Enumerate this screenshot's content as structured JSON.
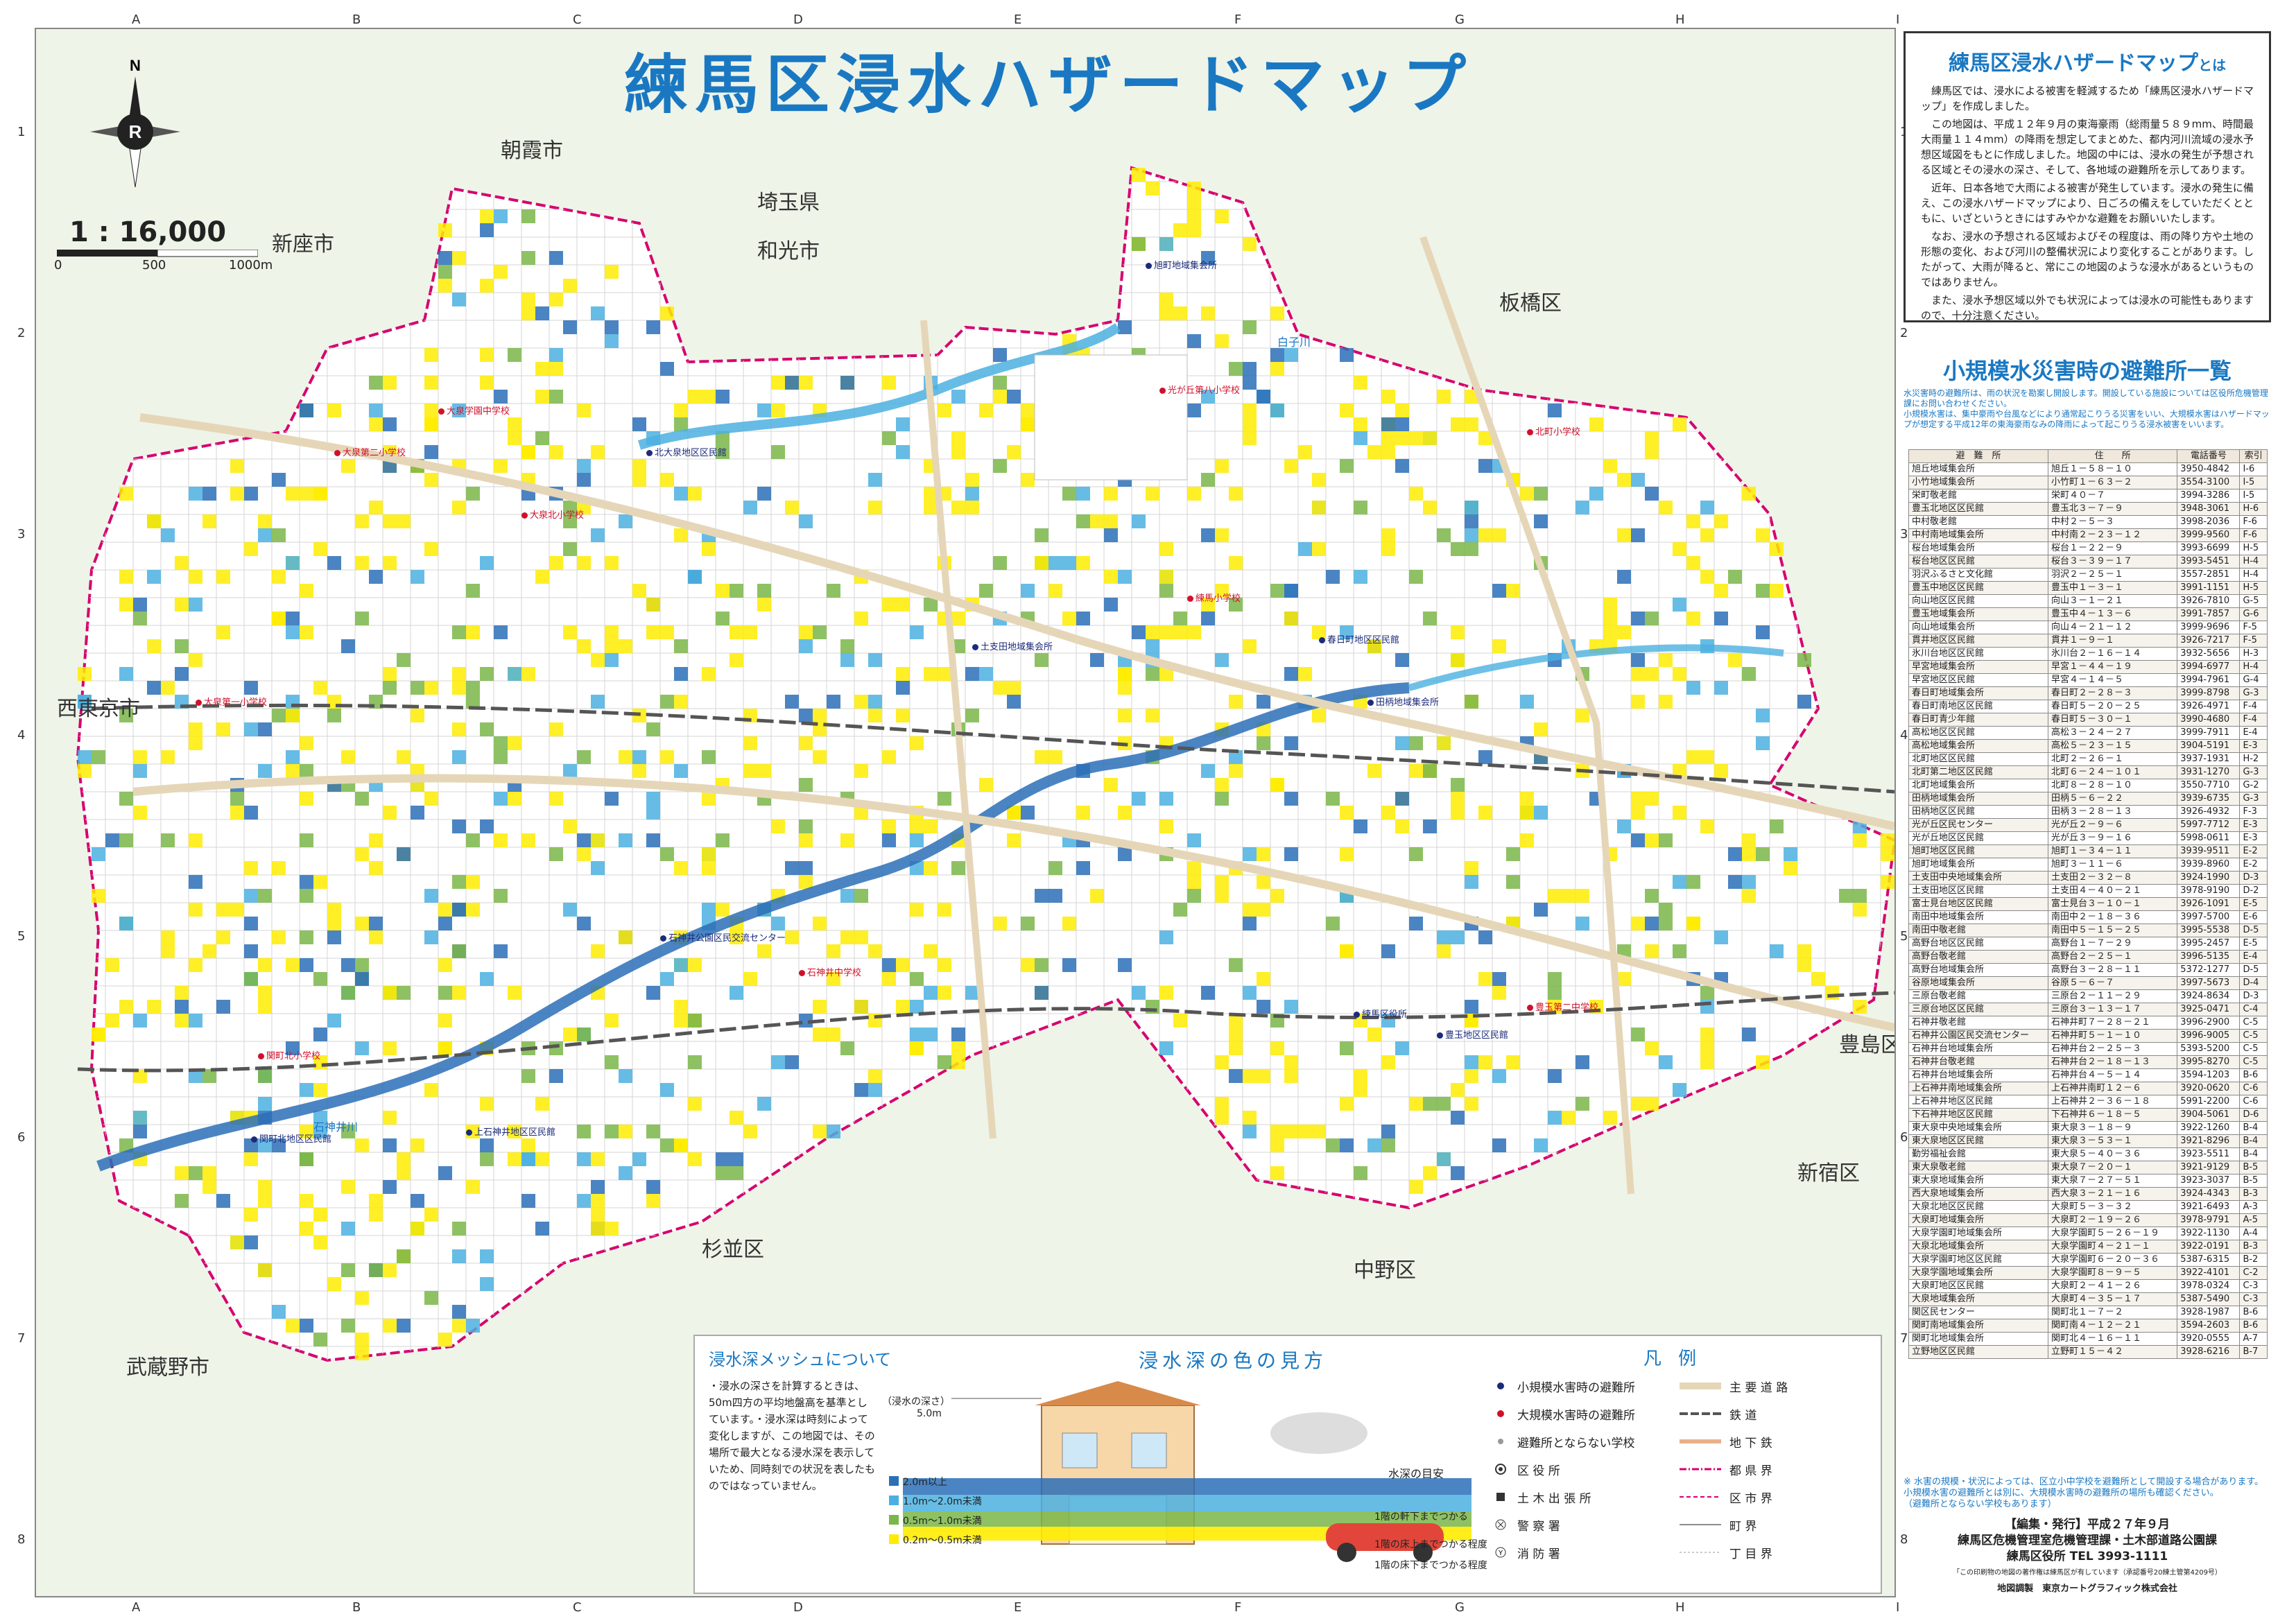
{
  "title": "練馬区浸水ハザードマップ",
  "scale": {
    "ratio": "1 : 16,000",
    "ticks": [
      "0",
      "500",
      "1000m"
    ]
  },
  "compass": {
    "north": "N"
  },
  "grid": {
    "letters": [
      "A",
      "B",
      "C",
      "D",
      "E",
      "F",
      "G",
      "H",
      "I"
    ],
    "numbers": [
      "1",
      "2",
      "3",
      "4",
      "5",
      "6",
      "7",
      "8"
    ],
    "inset_letters": [
      "D",
      "E",
      "F",
      "G",
      "H",
      "I"
    ]
  },
  "places": {
    "asaka": "朝霞市",
    "saitama": "埼玉県",
    "wako": "和光市",
    "niiza": "新座市",
    "itabashi": "板橋区",
    "nishitokyo": "西東京市",
    "toshima": "豊島区",
    "shinjuku": "新宿区",
    "suginami": "杉並区",
    "nakano": "中野区",
    "musashino": "武蔵野市"
  },
  "rivers": {
    "shirako": "白子川",
    "shakujii": "石神井川"
  },
  "shelters": {
    "small": [
      "北大泉地区区民館",
      "旭町地域集会所",
      "土支田地域集会所",
      "石神井公園区民交流センター",
      "練馬区役所",
      "春日町地区区民館",
      "田柄地域集会所",
      "豊玉地区区民館",
      "関町北地区区民館",
      "上石神井地区区民館"
    ],
    "large": [
      "大泉第二小学校",
      "大泉学園中学校",
      "大泉北小学校",
      "石神井中学校",
      "練馬小学校",
      "光が丘第八小学校",
      "豊玉第二中学校",
      "北町小学校",
      "関町北小学校",
      "大泉第一小学校"
    ]
  },
  "about": {
    "title_main": "練馬区浸水ハザードマップ",
    "title_suffix": "とは",
    "paragraphs": [
      "練馬区では、浸水による被害を軽減するため「練馬区浸水ハザードマップ」を作成しました。",
      "この地図は、平成１２年９月の東海豪雨（総雨量５８９mm、時間最大雨量１１４mm）の降雨を想定してまとめた、都内河川流域の浸水予想区域図をもとに作成しました。地図の中には、浸水の発生が予想される区域とその浸水の深さ、そして、各地域の避難所を示してあります。",
      "近年、日本各地で大雨による被害が発生しています。浸水の発生に備え、この浸水ハザードマップにより、日ごろの備えをしていただくとともに、いざというときにはすみやかな避難をお願いいたします。",
      "なお、浸水の予想される区域およびその程度は、雨の降り方や土地の形態の変化、および河川の整備状況により変化することがあります。したがって、大雨が降ると、常にこの地図のような浸水があるというものではありません。",
      "また、浸水予想区域以外でも状況によっては浸水の可能性もありますので、十分注意ください。"
    ]
  },
  "shelter_list": {
    "title": "小規模水災害時の避難所一覧",
    "notes": [
      "水災害時の避難所は、雨の状況を勘案し開設します。開設している施設については区役所危機管理課にお問い合わせください。",
      "小規模水害は、集中豪雨や台風などにより通常起こりうる災害をいい、大規模水害はハザードマップが想定する平成12年の東海豪雨なみの降雨によって起こりうる浸水被害をいいます。"
    ],
    "headers": [
      "避　難　所",
      "住　　所",
      "電話番号",
      "索引"
    ],
    "rows": [
      [
        "旭丘地域集会所",
        "旭丘１－５８－１０",
        "3950-4842",
        "I-6"
      ],
      [
        "小竹地域集会所",
        "小竹町１－６３－２",
        "3554-3100",
        "I-5"
      ],
      [
        "栄町敬老館",
        "栄町４０－７",
        "3994-3286",
        "I-5"
      ],
      [
        "豊玉北地区区民館",
        "豊玉北３－７－９",
        "3948-3061",
        "H-6"
      ],
      [
        "中村敬老館",
        "中村２－５－３",
        "3998-2036",
        "F-6"
      ],
      [
        "中村南地域集会所",
        "中村南２－２３－１２",
        "3999-9560",
        "F-6"
      ],
      [
        "桜台地域集会所",
        "桜台１－２２－９",
        "3993-6699",
        "H-5"
      ],
      [
        "桜台地区区民館",
        "桜台３－３９－１７",
        "3993-5451",
        "H-4"
      ],
      [
        "羽沢ふるさと文化館",
        "羽沢２－２５－１",
        "3557-2851",
        "H-4"
      ],
      [
        "豊玉中地区区民館",
        "豊玉中１－３－１",
        "3991-1151",
        "H-5"
      ],
      [
        "向山地区区民館",
        "向山３－１－２１",
        "3926-7810",
        "G-5"
      ],
      [
        "豊玉地域集会所",
        "豊玉中４－１３－６",
        "3991-7857",
        "G-6"
      ],
      [
        "向山地域集会所",
        "向山４－２１－１２",
        "3999-9696",
        "F-5"
      ],
      [
        "貫井地区区民館",
        "貫井１－９－１",
        "3926-7217",
        "F-5"
      ],
      [
        "氷川台地区区民館",
        "氷川台２－１６－１４",
        "3932-5656",
        "H-3"
      ],
      [
        "早宮地域集会所",
        "早宮１－４４－１９",
        "3994-6977",
        "H-4"
      ],
      [
        "早宮地区区民館",
        "早宮４－１４－５",
        "3994-7961",
        "G-4"
      ],
      [
        "春日町地域集会所",
        "春日町２－２８－３",
        "3999-8798",
        "G-3"
      ],
      [
        "春日町南地区区民館",
        "春日町５－２０－２５",
        "3926-4971",
        "F-4"
      ],
      [
        "春日町青少年館",
        "春日町５－３０－１",
        "3990-4680",
        "F-4"
      ],
      [
        "高松地区区民館",
        "高松３－２４－２７",
        "3999-7911",
        "E-4"
      ],
      [
        "高松地域集会所",
        "高松５－２３－１５",
        "3904-5191",
        "E-3"
      ],
      [
        "北町地区区民館",
        "北町２－２６－１",
        "3937-1931",
        "H-2"
      ],
      [
        "北町第二地区区民館",
        "北町６－２４－１０１",
        "3931-1270",
        "G-3"
      ],
      [
        "北町地域集会所",
        "北町８－２８－１０",
        "3550-7710",
        "G-2"
      ],
      [
        "田柄地域集会所",
        "田柄５－６－２２",
        "3939-6735",
        "G-3"
      ],
      [
        "田柄地区区民館",
        "田柄３－２８－１３",
        "3926-4932",
        "F-3"
      ],
      [
        "光が丘区民センター",
        "光が丘２－９－６",
        "5997-7712",
        "E-3"
      ],
      [
        "光が丘地区区民館",
        "光が丘３－９－１６",
        "5998-0611",
        "E-3"
      ],
      [
        "旭町地区区民館",
        "旭町１－３４－１１",
        "3939-9511",
        "E-2"
      ],
      [
        "旭町地域集会所",
        "旭町３－１１－６",
        "3939-8960",
        "E-2"
      ],
      [
        "土支田中央地域集会所",
        "土支田２－３２－８",
        "3924-1990",
        "D-3"
      ],
      [
        "土支田地区区民館",
        "土支田４－４０－２１",
        "3978-9190",
        "D-2"
      ],
      [
        "富士見台地区区民館",
        "富士見台３－１０－１",
        "3926-1091",
        "E-5"
      ],
      [
        "南田中地域集会所",
        "南田中２－１８－３６",
        "3997-5700",
        "E-6"
      ],
      [
        "南田中敬老館",
        "南田中５－１５－２５",
        "3995-5538",
        "D-5"
      ],
      [
        "高野台地区区民館",
        "高野台１－７－２９",
        "3995-2457",
        "E-5"
      ],
      [
        "高野台敬老館",
        "高野台２－２５－１",
        "3996-5135",
        "E-4"
      ],
      [
        "高野台地域集会所",
        "高野台３－２８－１１",
        "5372-1277",
        "D-5"
      ],
      [
        "谷原地域集会所",
        "谷原５－６－７",
        "3997-5673",
        "D-4"
      ],
      [
        "三原台敬老館",
        "三原台２－１１－２９",
        "3924-8634",
        "D-3"
      ],
      [
        "三原台地区区民館",
        "三原台３－１３－１７",
        "3925-0471",
        "C-4"
      ],
      [
        "石神井敬老館",
        "石神井町７－２８－２１",
        "3996-2900",
        "C-5"
      ],
      [
        "石神井公園区民交流センター",
        "石神井町５－１－１０",
        "3996-9005",
        "C-5"
      ],
      [
        "石神井台地域集会所",
        "石神井台２－２５－３",
        "5393-5200",
        "C-5"
      ],
      [
        "石神井台敬老館",
        "石神井台２－１８－１３",
        "3995-8270",
        "C-5"
      ],
      [
        "石神井台地域集会所",
        "石神井台４－５－１４",
        "3594-1203",
        "B-6"
      ],
      [
        "上石神井南地域集会所",
        "上石神井南町１２－６",
        "3920-0620",
        "C-6"
      ],
      [
        "上石神井地区区民館",
        "上石神井２－３６－１８",
        "5991-2200",
        "C-6"
      ],
      [
        "下石神井地区区民館",
        "下石神井６－１８－５",
        "3904-5061",
        "D-6"
      ],
      [
        "東大泉中央地域集会所",
        "東大泉３－１８－９",
        "3922-1260",
        "B-4"
      ],
      [
        "東大泉地区区民館",
        "東大泉３－５３－１",
        "3921-8296",
        "B-4"
      ],
      [
        "勤労福祉会館",
        "東大泉５－４０－３６",
        "3923-5511",
        "B-4"
      ],
      [
        "東大泉敬老館",
        "東大泉７－２０－１",
        "3921-9129",
        "B-5"
      ],
      [
        "東大泉地域集会所",
        "東大泉７－２７－５１",
        "3923-3037",
        "B-5"
      ],
      [
        "西大泉地域集会所",
        "西大泉３－２１－１６",
        "3924-4343",
        "B-3"
      ],
      [
        "大泉北地区区民館",
        "大泉町５－３－３２",
        "3921-6493",
        "A-3"
      ],
      [
        "大泉町地域集会所",
        "大泉町２－１９－２６",
        "3978-9791",
        "A-5"
      ],
      [
        "大泉学園町地域集会所",
        "大泉学園町５－２６－１９",
        "3922-1130",
        "A-4"
      ],
      [
        "大泉北地域集会所",
        "大泉学園町４－２１－１",
        "3922-0191",
        "B-3"
      ],
      [
        "大泉学園町地区区民館",
        "大泉学園町６－２０－３６",
        "5387-6315",
        "B-2"
      ],
      [
        "大泉学園地域集会所",
        "大泉学園町８－９－５",
        "3922-4101",
        "C-2"
      ],
      [
        "大泉町地区区民館",
        "大泉町２－４１－２６",
        "3978-0324",
        "C-3"
      ],
      [
        "大泉地域集会所",
        "大泉町４－３５－１７",
        "5387-5490",
        "C-3"
      ],
      [
        "関区民センター",
        "関町北１－７－２",
        "3928-1987",
        "B-6"
      ],
      [
        "関町南地域集会所",
        "関町南４－１２－２１",
        "3594-2603",
        "B-6"
      ],
      [
        "関町北地域集会所",
        "関町北４－１６－１１",
        "3920-0555",
        "A-7"
      ],
      [
        "立野地区区民館",
        "立野町１５－４２",
        "3928-6216",
        "B-7"
      ]
    ],
    "footnotes": [
      "※ 水害の規模・状況によっては、区立小中学校を避難所として開設する場合があります。",
      "小規模水害の避難所とは別に、大規模水害時の避難所の場所も確認ください。",
      "（避難所とならない学校もあります）"
    ]
  },
  "publish": {
    "line1": "【編集・発行】平成２７年９月",
    "line2": "練馬区危機管理室危機管理課・土木部道路公園課",
    "line3": "練馬区役所 TEL 3993-1111",
    "fine": "「この印刷物の地図の著作権は練馬区が有しています（承認番号20練土管第4209号）",
    "maker": "地図調製　東京カートグラフィック株式会社"
  },
  "mesh": {
    "title": "浸水深メッシュについて",
    "body": "・浸水の深さを計算するときは、50m四方の平均地盤高を基準としています。・浸水深は時刻によって変化しますが、この地図では、その場所で最大となる浸水深を表示していため、同時刻での状況を表したものではなっていません。"
  },
  "depth_legend": {
    "title": "浸水深の色の見方",
    "flood_depth_label": "（浸水の深さ）",
    "flood_max": "5.0m",
    "items": [
      {
        "label": "2.0m以上",
        "color": "#2c6fb7"
      },
      {
        "label": "1.0m～2.0m未満",
        "color": "#4bb0e1"
      },
      {
        "label": "0.5m～1.0m未満",
        "color": "#7ab648"
      },
      {
        "label": "0.2m～0.5m未満",
        "color": "#ffec00"
      }
    ],
    "guide_title": "水深の目安",
    "guide": [
      "1階の軒下までつかる",
      "1階の床上までつかる程度",
      "1階の床下までつかる程度"
    ]
  },
  "legend": {
    "title": "凡 例",
    "left": [
      {
        "label": "小規模水害時の避難所",
        "symbol": "navy-dot"
      },
      {
        "label": "大規模水害時の避難所",
        "symbol": "red-dot"
      },
      {
        "label": "避難所とならない学校",
        "symbol": "gray-dot"
      },
      {
        "label": "区 役 所",
        "symbol": "ward-office"
      },
      {
        "label": "土 木 出 張 所",
        "symbol": "civil-office"
      },
      {
        "label": "警 察 署",
        "symbol": "police"
      },
      {
        "label": "消 防 署",
        "symbol": "fire"
      }
    ],
    "right": [
      {
        "label": "主 要 道 路",
        "symbol": "road"
      },
      {
        "label": "鉄 道",
        "symbol": "railway"
      },
      {
        "label": "地 下 鉄",
        "symbol": "subway"
      },
      {
        "label": "都 県 界",
        "symbol": "pref-border"
      },
      {
        "label": "区 市 界",
        "symbol": "ward-border"
      },
      {
        "label": "町 界",
        "symbol": "town-border"
      },
      {
        "label": "丁 目 界",
        "symbol": "chome-border"
      }
    ]
  },
  "colors": {
    "depth_2m": "#2c6fb7",
    "depth_1m": "#4bb0e1",
    "depth_05m": "#7ab648",
    "depth_02m": "#ffec00",
    "title_blue": "#1a78c2",
    "boundary": "#d6006f"
  }
}
